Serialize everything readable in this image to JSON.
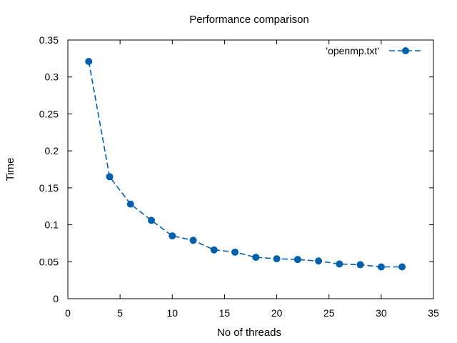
{
  "chart_data": {
    "type": "line",
    "title": "Performance comparison",
    "xlabel": "No of threads",
    "ylabel": "Time",
    "xlim": [
      0,
      35
    ],
    "ylim": [
      0,
      0.35
    ],
    "xticks": [
      0,
      5,
      10,
      15,
      20,
      25,
      30,
      35
    ],
    "yticks": [
      0,
      0.05,
      0.1,
      0.15,
      0.2,
      0.25,
      0.3,
      0.35
    ],
    "xtick_labels": [
      "0",
      "5",
      "10",
      "15",
      "20",
      "25",
      "30",
      "35"
    ],
    "ytick_labels": [
      "0",
      "0.05",
      "0.1",
      "0.15",
      "0.2",
      "0.25",
      "0.3",
      "0.35"
    ],
    "grid": false,
    "legend_position": "top-right",
    "series": [
      {
        "name": "'openmp.txt'",
        "color": "#0060ad",
        "line_style": "dashed",
        "marker": "circle",
        "x": [
          2,
          4,
          6,
          8,
          10,
          12,
          14,
          16,
          18,
          20,
          22,
          24,
          26,
          28,
          30,
          32
        ],
        "y": [
          0.321,
          0.165,
          0.128,
          0.106,
          0.085,
          0.079,
          0.066,
          0.063,
          0.056,
          0.054,
          0.053,
          0.051,
          0.047,
          0.046,
          0.043,
          0.043
        ]
      }
    ]
  }
}
